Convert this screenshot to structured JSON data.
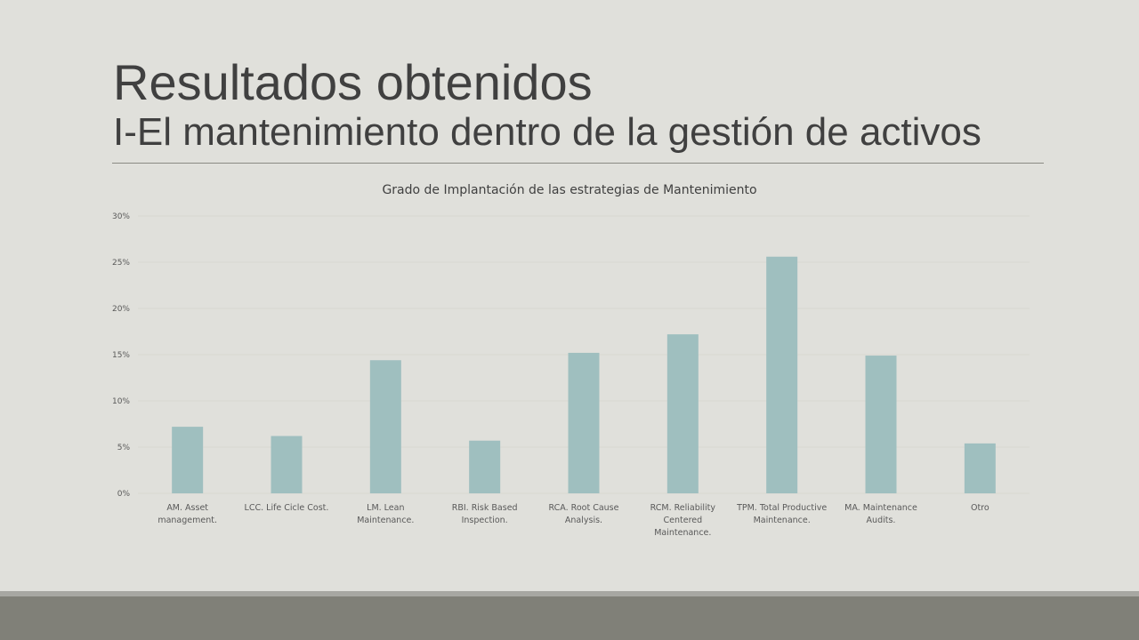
{
  "slide": {
    "title": "Resultados obtenidos",
    "subtitle": "I-El mantenimiento dentro de la gestión de activos"
  },
  "chart_data": {
    "type": "bar",
    "title": "Grado de Implantación de las estrategias de Mantenimiento",
    "xlabel": "",
    "ylabel": "",
    "ylim": [
      0,
      0.3
    ],
    "yticks": [
      {
        "value": 0,
        "label": "0%"
      },
      {
        "value": 0.05,
        "label": "5%"
      },
      {
        "value": 0.1,
        "label": "10%"
      },
      {
        "value": 0.15,
        "label": "15%"
      },
      {
        "value": 0.2,
        "label": "20%"
      },
      {
        "value": 0.25,
        "label": "25%"
      },
      {
        "value": 0.3,
        "label": "30%"
      }
    ],
    "grid": true,
    "legend": "none",
    "bar_color": "#9fbfbf",
    "grid_color": "#d8d8d2",
    "categories": [
      [
        "AM. Asset",
        "management."
      ],
      [
        "LCC. Life Cicle Cost."
      ],
      [
        "LM. Lean",
        "Maintenance."
      ],
      [
        "RBI. Risk Based",
        "Inspection."
      ],
      [
        "RCA. Root Cause",
        "Analysis."
      ],
      [
        "RCM. Reliability",
        "Centered",
        "Maintenance."
      ],
      [
        "TPM. Total Productive",
        "Maintenance."
      ],
      [
        "MA. Maintenance",
        "Audits."
      ],
      [
        "Otro"
      ]
    ],
    "values": [
      0.072,
      0.062,
      0.144,
      0.057,
      0.152,
      0.172,
      0.256,
      0.149,
      0.054
    ]
  }
}
